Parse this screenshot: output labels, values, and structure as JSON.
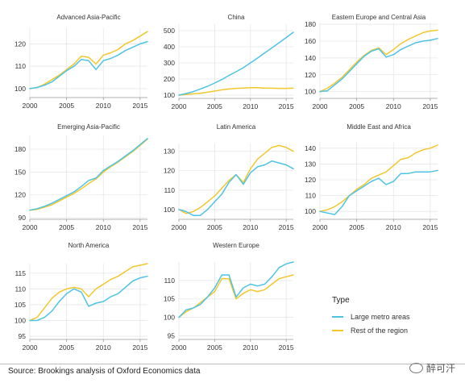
{
  "colors": {
    "large_metro": "#4fc3e4",
    "rest_region": "#f2c72c"
  },
  "legend": {
    "title": "Type",
    "items": [
      {
        "label": "Large metro areas",
        "color": "#4fc3e4"
      },
      {
        "label": "Rest of the region",
        "color": "#f2c72c"
      }
    ]
  },
  "source": "Source: Brookings analysis of Oxford Economics data",
  "watermark": "醉可汗",
  "chart_data": [
    {
      "type": "line",
      "title": "Advanced Asia-Pacific",
      "x": [
        2000,
        2001,
        2002,
        2003,
        2004,
        2005,
        2006,
        2007,
        2008,
        2009,
        2010,
        2011,
        2012,
        2013,
        2014,
        2015,
        2016
      ],
      "xticks": [
        2000,
        2005,
        2010,
        2015
      ],
      "yticks": [
        100,
        110,
        120
      ],
      "ylim": [
        96,
        127
      ],
      "series": [
        {
          "name": "Large metro areas",
          "values": [
            100,
            100.5,
            101.5,
            103,
            105.5,
            108,
            110,
            113,
            112.5,
            108.5,
            112.5,
            113.5,
            115,
            117,
            118.5,
            120,
            121
          ]
        },
        {
          "name": "Rest of the region",
          "values": [
            100,
            100.5,
            102,
            104,
            106,
            108.5,
            111,
            114.5,
            114,
            111,
            115,
            116,
            117.5,
            120,
            121.5,
            123.5,
            125.5
          ]
        }
      ]
    },
    {
      "type": "line",
      "title": "China",
      "x": [
        2000,
        2001,
        2002,
        2003,
        2004,
        2005,
        2006,
        2007,
        2008,
        2009,
        2010,
        2011,
        2012,
        2013,
        2014,
        2015,
        2016
      ],
      "xticks": [
        2000,
        2005,
        2010,
        2015
      ],
      "yticks": [
        100,
        200,
        300,
        400,
        500
      ],
      "ylim": [
        80,
        540
      ],
      "series": [
        {
          "name": "Large metro areas",
          "values": [
            100,
            110,
            122,
            138,
            155,
            175,
            197,
            222,
            245,
            270,
            300,
            330,
            362,
            393,
            425,
            457,
            490
          ]
        },
        {
          "name": "Rest of the region",
          "values": [
            100,
            104,
            108,
            112,
            118,
            125,
            133,
            138,
            142,
            144,
            146,
            146,
            144,
            143,
            142,
            142,
            144
          ]
        }
      ]
    },
    {
      "type": "line",
      "title": "Eastern Europe and Central Asia",
      "x": [
        2000,
        2001,
        2002,
        2003,
        2004,
        2005,
        2006,
        2007,
        2008,
        2009,
        2010,
        2011,
        2012,
        2013,
        2014,
        2015,
        2016
      ],
      "xticks": [
        2000,
        2005,
        2010,
        2015
      ],
      "yticks": [
        100,
        120,
        140,
        160,
        180
      ],
      "ylim": [
        92,
        182
      ],
      "series": [
        {
          "name": "Large metro areas",
          "values": [
            100,
            101,
            108,
            115,
            124,
            133,
            142,
            148,
            151,
            141,
            144,
            150,
            154,
            158,
            160,
            161,
            163
          ]
        },
        {
          "name": "Rest of the region",
          "values": [
            100,
            104,
            110,
            117,
            126,
            135,
            143,
            149,
            152,
            144,
            150,
            157,
            162,
            166,
            170,
            172,
            173
          ]
        }
      ]
    },
    {
      "type": "line",
      "title": "Emerging Asia-Pacific",
      "x": [
        2000,
        2001,
        2002,
        2003,
        2004,
        2005,
        2006,
        2007,
        2008,
        2009,
        2010,
        2011,
        2012,
        2013,
        2014,
        2015,
        2016
      ],
      "xticks": [
        2000,
        2005,
        2010,
        2015
      ],
      "yticks": [
        90,
        120,
        150,
        180
      ],
      "ylim": [
        88,
        198
      ],
      "series": [
        {
          "name": "Large metro areas",
          "values": [
            100,
            102,
            105,
            109,
            114,
            119,
            124,
            131,
            139,
            142,
            152,
            158,
            164,
            171,
            178,
            186,
            194
          ]
        },
        {
          "name": "Rest of the region",
          "values": [
            100,
            101,
            104,
            107,
            112,
            117,
            122,
            128,
            135,
            141,
            150,
            157,
            163,
            170,
            177,
            185,
            193
          ]
        }
      ]
    },
    {
      "type": "line",
      "title": "Latin America",
      "x": [
        2000,
        2001,
        2002,
        2003,
        2004,
        2005,
        2006,
        2007,
        2008,
        2009,
        2010,
        2011,
        2012,
        2013,
        2014,
        2015,
        2016
      ],
      "xticks": [
        2000,
        2005,
        2010,
        2015
      ],
      "yticks": [
        100,
        110,
        120,
        130
      ],
      "ylim": [
        95,
        134
      ],
      "series": [
        {
          "name": "Large metro areas",
          "values": [
            100,
            99,
            97,
            97,
            100,
            104,
            108,
            114,
            118,
            113,
            119,
            122,
            123,
            125,
            124,
            123,
            121
          ]
        },
        {
          "name": "Rest of the region",
          "values": [
            100,
            98,
            99,
            101,
            104,
            107,
            111,
            115,
            118,
            114,
            121,
            126,
            129,
            132,
            133,
            132,
            130
          ]
        }
      ]
    },
    {
      "type": "line",
      "title": "Middle East and Africa",
      "x": [
        2000,
        2001,
        2002,
        2003,
        2004,
        2005,
        2006,
        2007,
        2008,
        2009,
        2010,
        2011,
        2012,
        2013,
        2014,
        2015,
        2016
      ],
      "xticks": [
        2000,
        2005,
        2010,
        2015
      ],
      "yticks": [
        100,
        110,
        120,
        130,
        140
      ],
      "ylim": [
        95,
        144
      ],
      "series": [
        {
          "name": "Large metro areas",
          "values": [
            100,
            99,
            98,
            103,
            110,
            113,
            116,
            119,
            121,
            117,
            119,
            124,
            124,
            125,
            125,
            125,
            126
          ]
        },
        {
          "name": "Rest of the region",
          "values": [
            100,
            101,
            103,
            106,
            110,
            114,
            117,
            121,
            123,
            125,
            129,
            133,
            134,
            137,
            139,
            140,
            142
          ]
        }
      ]
    },
    {
      "type": "line",
      "title": "North America",
      "x": [
        2000,
        2001,
        2002,
        2003,
        2004,
        2005,
        2006,
        2007,
        2008,
        2009,
        2010,
        2011,
        2012,
        2013,
        2014,
        2015,
        2016
      ],
      "xticks": [
        2000,
        2005,
        2010,
        2015
      ],
      "yticks": [
        95,
        100,
        105,
        110,
        115
      ],
      "ylim": [
        94,
        118
      ],
      "series": [
        {
          "name": "Large metro areas",
          "values": [
            100,
            100,
            101,
            103,
            106,
            108.5,
            110,
            109,
            104.5,
            105.5,
            106,
            107.5,
            108.5,
            110.5,
            112.5,
            113.5,
            114
          ]
        },
        {
          "name": "Rest of the region",
          "values": [
            100,
            101,
            104,
            107,
            109,
            110,
            110.5,
            110,
            107.5,
            110,
            111.5,
            113,
            114,
            115.5,
            117,
            117.5,
            118
          ]
        }
      ]
    },
    {
      "type": "line",
      "title": "Western Europe",
      "x": [
        2000,
        2001,
        2002,
        2003,
        2004,
        2005,
        2006,
        2007,
        2008,
        2009,
        2010,
        2011,
        2012,
        2013,
        2014,
        2015,
        2016
      ],
      "xticks": [
        2000,
        2005,
        2010,
        2015
      ],
      "yticks": [
        95,
        100,
        105,
        110
      ],
      "ylim": [
        94,
        115
      ],
      "series": [
        {
          "name": "Large metro areas",
          "values": [
            100,
            102,
            102.5,
            103.5,
            105.5,
            108,
            111.5,
            111.5,
            105.5,
            108,
            109,
            108.5,
            109,
            111,
            113.5,
            114.5,
            115
          ]
        },
        {
          "name": "Rest of the region",
          "values": [
            100,
            101.5,
            102.5,
            104,
            105.5,
            107,
            110.5,
            110.5,
            105,
            106.5,
            107.5,
            107,
            107.5,
            109,
            110.5,
            111,
            111.5
          ]
        }
      ]
    }
  ]
}
